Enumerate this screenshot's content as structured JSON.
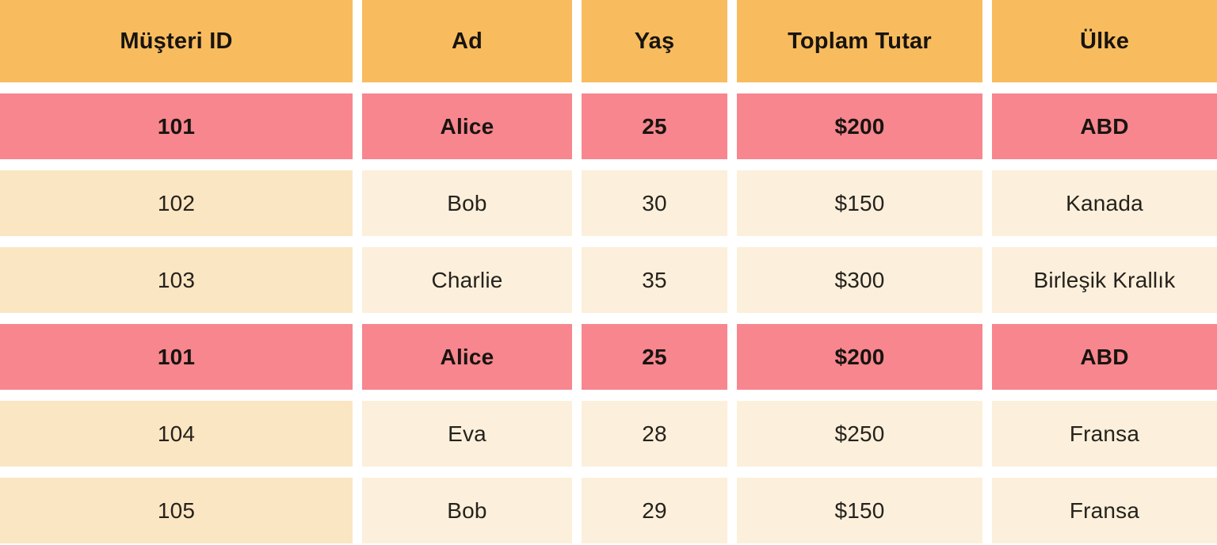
{
  "table": {
    "columns": [
      "Müşteri ID",
      "Ad",
      "Yaş",
      "Toplam Tutar",
      "Ülke"
    ],
    "rows": [
      {
        "cells": [
          "101",
          "Alice",
          "25",
          "$200",
          "ABD"
        ],
        "highlight": true
      },
      {
        "cells": [
          "102",
          "Bob",
          "30",
          "$150",
          "Kanada"
        ],
        "highlight": false
      },
      {
        "cells": [
          "103",
          "Charlie",
          "35",
          "$300",
          "Birleşik Krallık"
        ],
        "highlight": false
      },
      {
        "cells": [
          "101",
          "Alice",
          "25",
          "$200",
          "ABD"
        ],
        "highlight": true
      },
      {
        "cells": [
          "104",
          "Eva",
          "28",
          "$250",
          "Fransa"
        ],
        "highlight": false
      },
      {
        "cells": [
          "105",
          "Bob",
          "29",
          "$150",
          "Fransa"
        ],
        "highlight": false
      }
    ]
  },
  "colors": {
    "header_bg": "#F8BC5E",
    "highlight_bg": "#F7868E",
    "row_first_col_bg": "#FBE6C3",
    "row_bg": "#FCF0DC",
    "gap_bg": "#FFFFFF",
    "text": "#26221C",
    "text_strong": "#181410"
  },
  "chart_data": {
    "type": "table",
    "title": "",
    "columns": [
      "Müşteri ID",
      "Ad",
      "Yaş",
      "Toplam Tutar",
      "Ülke"
    ],
    "rows": [
      [
        "101",
        "Alice",
        "25",
        "$200",
        "ABD"
      ],
      [
        "102",
        "Bob",
        "30",
        "$150",
        "Kanada"
      ],
      [
        "103",
        "Charlie",
        "35",
        "$300",
        "Birleşik Krallık"
      ],
      [
        "101",
        "Alice",
        "25",
        "$200",
        "ABD"
      ],
      [
        "104",
        "Eva",
        "28",
        "$250",
        "Fransa"
      ],
      [
        "105",
        "Bob",
        "29",
        "$150",
        "Fransa"
      ]
    ],
    "highlighted_row_indices": [
      0,
      3
    ],
    "highlight_meaning": "duplicate rows",
    "layout_hints": {
      "header_fill": "orange",
      "highlight_fill": "pink",
      "body_fill": "cream",
      "cell_text_align": "center",
      "grid": "white gaps between cells"
    }
  }
}
